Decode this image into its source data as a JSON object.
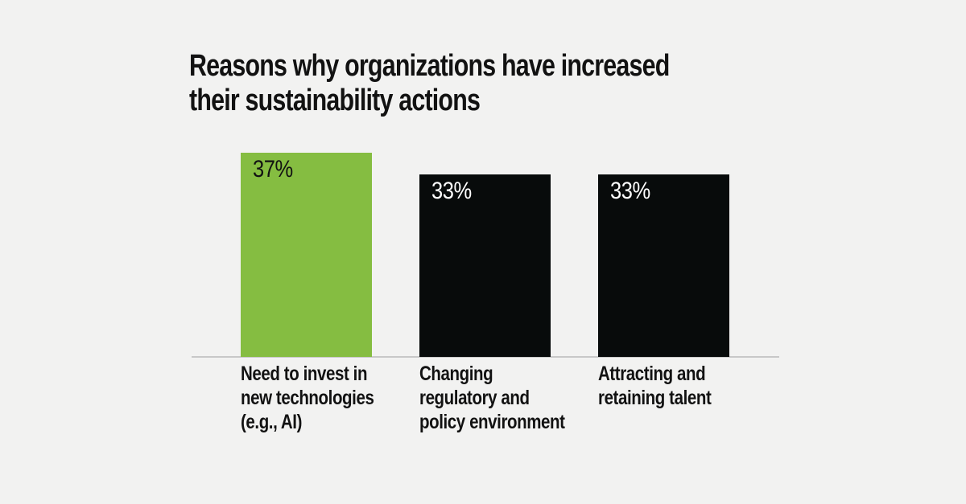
{
  "page": {
    "background_color": "#f2f2f1",
    "text_color": "#121212"
  },
  "chart_data": {
    "type": "bar",
    "title": "Reasons why organizations have increased their sustainability actions",
    "title_lines": [
      "Reasons why organizations have increased",
      "their sustainability actions"
    ],
    "categories": [
      "Need to invest in new technologies (e.g., AI)",
      "Changing regulatory and policy environment",
      "Attracting and retaining talent"
    ],
    "category_lines": [
      [
        "Need to invest in",
        "new technologies",
        "(e.g., AI)"
      ],
      [
        "Changing",
        "regulatory and",
        "policy environment"
      ],
      [
        "Attracting and",
        "retaining talent"
      ]
    ],
    "values": [
      37,
      33,
      33
    ],
    "value_labels": [
      "37%",
      "33%",
      "33%"
    ],
    "unit": "%",
    "ylim": [
      0,
      37
    ],
    "xlabel": "",
    "ylabel": "",
    "grid": false,
    "legend": false,
    "bar_colors": [
      "#85bd41",
      "#080b0b",
      "#080b0b"
    ],
    "value_label_colors": [
      "#121212",
      "#ffffff",
      "#ffffff"
    ],
    "axis_line_color": "#c8c8c8"
  }
}
